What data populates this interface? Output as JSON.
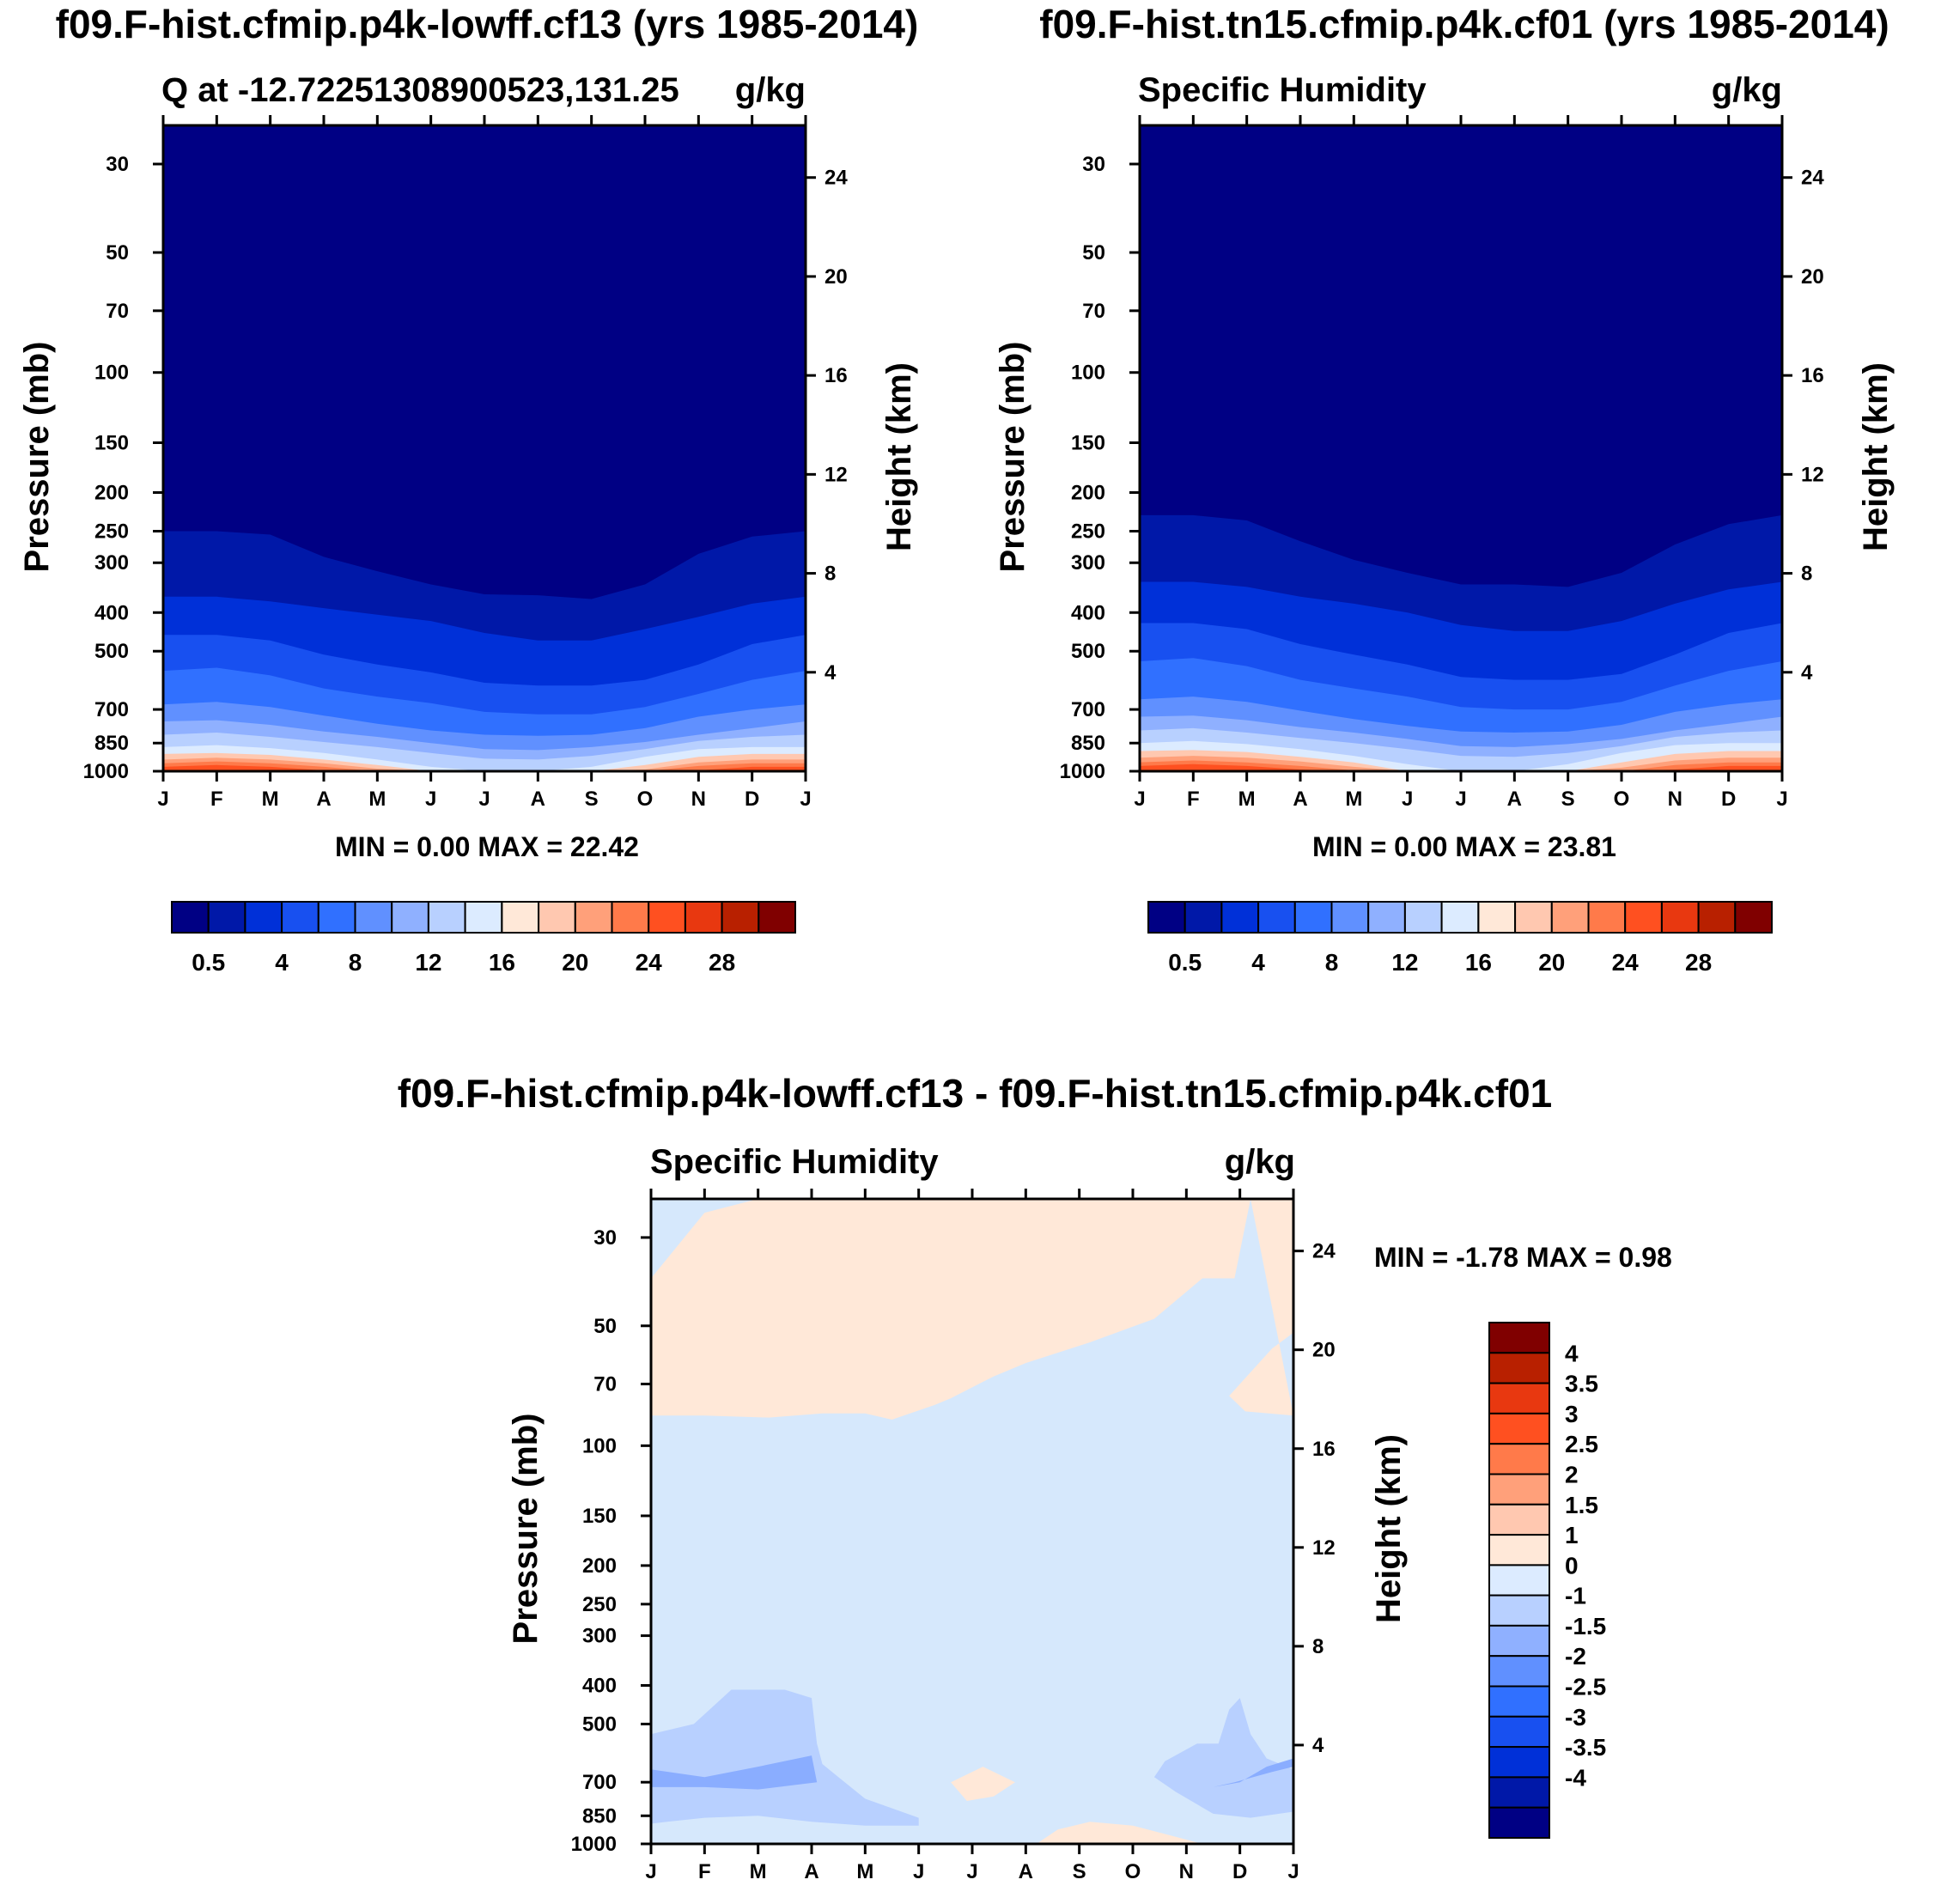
{
  "chart_data": [
    {
      "type": "heatmap",
      "title": "f09.F-hist.cfmip.p4k-lowff.cf13 (yrs 1985-2014)",
      "left_subtitle": "Q at -12.72251308900523,131.25",
      "right_subtitle": "g/kg",
      "ylabel": "Pressure (mb)",
      "y2label": "Height (km)",
      "x_ticks": [
        "J",
        "F",
        "M",
        "A",
        "M",
        "J",
        "J",
        "A",
        "S",
        "O",
        "N",
        "D",
        "J"
      ],
      "pressure_ticks": [
        "30",
        "50",
        "70",
        "100",
        "150",
        "200",
        "250",
        "300",
        "400",
        "500",
        "700",
        "850",
        "1000"
      ],
      "height_ticks": [
        "24",
        "20",
        "16",
        "12",
        "8",
        "4"
      ],
      "ylim_mb": [
        1000,
        24
      ],
      "stats_text": "MIN =   0.00 MAX =  22.42",
      "min": 0.0,
      "max": 22.42,
      "contour_levels": [
        0.5,
        2,
        4,
        6,
        8,
        10,
        12,
        14,
        16,
        18,
        20,
        22,
        24,
        26,
        28
      ],
      "colorbar_labels": [
        "0.5",
        "4",
        "8",
        "12",
        "16",
        "20",
        "24",
        "28"
      ],
      "boundaries_mb": [
        [
          250,
          250,
          255,
          290,
          315,
          340,
          360,
          362,
          370,
          340,
          285,
          258,
          250
        ],
        [
          365,
          365,
          375,
          390,
          405,
          420,
          450,
          470,
          470,
          440,
          410,
          380,
          365
        ],
        [
          455,
          455,
          470,
          510,
          540,
          565,
          600,
          610,
          610,
          590,
          540,
          480,
          455
        ],
        [
          560,
          550,
          575,
          620,
          650,
          675,
          710,
          720,
          720,
          690,
          640,
          590,
          560
        ],
        [
          680,
          670,
          690,
          725,
          760,
          790,
          810,
          815,
          810,
          780,
          730,
          700,
          680
        ],
        [
          750,
          745,
          765,
          795,
          820,
          850,
          880,
          885,
          870,
          845,
          810,
          780,
          750
        ],
        [
          810,
          800,
          820,
          845,
          870,
          900,
          930,
          935,
          915,
          880,
          840,
          820,
          810
        ],
        [
          870,
          860,
          875,
          900,
          935,
          975,
          1000,
          1000,
          975,
          920,
          880,
          870,
          870
        ],
        [
          905,
          900,
          910,
          935,
          965,
          1000,
          1000,
          1000,
          1000,
          965,
          920,
          905,
          905
        ],
        [
          935,
          925,
          935,
          955,
          985,
          1000,
          1000,
          1000,
          1000,
          990,
          950,
          935,
          935
        ],
        [
          955,
          945,
          955,
          975,
          1000,
          1000,
          1000,
          1000,
          1000,
          1000,
          970,
          955,
          955
        ],
        [
          975,
          965,
          975,
          995,
          1000,
          1000,
          1000,
          1000,
          1000,
          1000,
          995,
          975,
          975
        ]
      ],
      "colors": [
        "#000084",
        "#0018a8",
        "#0030d8",
        "#1850f0",
        "#3070ff",
        "#6090ff",
        "#8fb0ff",
        "#b8d0ff",
        "#dcebff",
        "#ffe8d8",
        "#ffc8b0",
        "#ffa07a",
        "#ff7a4a",
        "#ff5020",
        "#e83810",
        "#b82000",
        "#800000"
      ]
    },
    {
      "type": "heatmap",
      "title": "f09.F-hist.tn15.cfmip.p4k.cf01 (yrs 1985-2014)",
      "left_subtitle": "Specific Humidity",
      "right_subtitle": "g/kg",
      "ylabel": "Pressure (mb)",
      "y2label": "Height (km)",
      "x_ticks": [
        "J",
        "F",
        "M",
        "A",
        "M",
        "J",
        "J",
        "A",
        "S",
        "O",
        "N",
        "D",
        "J"
      ],
      "pressure_ticks": [
        "30",
        "50",
        "70",
        "100",
        "150",
        "200",
        "250",
        "300",
        "400",
        "500",
        "700",
        "850",
        "1000"
      ],
      "height_ticks": [
        "24",
        "20",
        "16",
        "12",
        "8",
        "4"
      ],
      "ylim_mb": [
        1000,
        24
      ],
      "stats_text": "MIN =   0.00 MAX =  23.81",
      "min": 0.0,
      "max": 23.81,
      "contour_levels": [
        0.5,
        2,
        4,
        6,
        8,
        10,
        12,
        14,
        16,
        18,
        20,
        22,
        24,
        26,
        28
      ],
      "colorbar_labels": [
        "0.5",
        "4",
        "8",
        "12",
        "16",
        "20",
        "24",
        "28"
      ],
      "boundaries_mb": [
        [
          228,
          228,
          235,
          265,
          295,
          318,
          340,
          340,
          345,
          318,
          270,
          240,
          228
        ],
        [
          335,
          335,
          345,
          365,
          380,
          400,
          430,
          445,
          445,
          420,
          380,
          350,
          335
        ],
        [
          425,
          425,
          440,
          480,
          510,
          540,
          580,
          590,
          590,
          570,
          510,
          450,
          425
        ],
        [
          530,
          520,
          545,
          590,
          620,
          650,
          690,
          700,
          700,
          670,
          610,
          560,
          530
        ],
        [
          660,
          650,
          670,
          705,
          740,
          770,
          795,
          800,
          795,
          765,
          710,
          680,
          660
        ],
        [
          730,
          725,
          745,
          775,
          800,
          830,
          865,
          870,
          855,
          830,
          790,
          760,
          730
        ],
        [
          790,
          780,
          800,
          825,
          850,
          880,
          915,
          920,
          900,
          865,
          820,
          800,
          790
        ],
        [
          850,
          840,
          855,
          880,
          915,
          960,
          1000,
          1000,
          960,
          900,
          860,
          850,
          850
        ],
        [
          890,
          885,
          895,
          920,
          950,
          1000,
          1000,
          1000,
          1000,
          950,
          905,
          890,
          890
        ],
        [
          925,
          915,
          925,
          945,
          975,
          1000,
          1000,
          1000,
          1000,
          980,
          940,
          925,
          925
        ],
        [
          950,
          940,
          950,
          970,
          995,
          1000,
          1000,
          1000,
          1000,
          1000,
          965,
          950,
          950
        ],
        [
          970,
          960,
          970,
          990,
          1000,
          1000,
          1000,
          1000,
          1000,
          1000,
          990,
          970,
          970
        ]
      ],
      "colors": [
        "#000084",
        "#0018a8",
        "#0030d8",
        "#1850f0",
        "#3070ff",
        "#6090ff",
        "#8fb0ff",
        "#b8d0ff",
        "#dcebff",
        "#ffe8d8",
        "#ffc8b0",
        "#ffa07a",
        "#ff7a4a",
        "#ff5020",
        "#e83810",
        "#b82000",
        "#800000"
      ]
    },
    {
      "type": "heatmap",
      "title": "f09.F-hist.cfmip.p4k-lowff.cf13 - f09.F-hist.tn15.cfmip.p4k.cf01",
      "left_subtitle": "Specific Humidity",
      "right_subtitle": "g/kg",
      "ylabel": "Pressure (mb)",
      "y2label": "Height (km)",
      "x_ticks": [
        "J",
        "F",
        "M",
        "A",
        "M",
        "J",
        "J",
        "A",
        "S",
        "O",
        "N",
        "D",
        "J"
      ],
      "pressure_ticks": [
        "30",
        "50",
        "70",
        "100",
        "150",
        "200",
        "250",
        "300",
        "400",
        "500",
        "700",
        "850",
        "1000"
      ],
      "height_ticks": [
        "24",
        "20",
        "16",
        "12",
        "8",
        "4"
      ],
      "ylim_mb": [
        1000,
        24
      ],
      "stats_text": "MIN =  -1.78 MAX =   0.98",
      "min": -1.78,
      "max": 0.98,
      "contour_levels": [
        -4,
        -3.5,
        -3,
        -2.5,
        -2,
        -1.5,
        -1,
        0,
        1,
        1.5,
        2,
        2.5,
        3,
        3.5,
        4
      ],
      "colorbar_labels": [
        "4",
        "3.5",
        "3",
        "2.5",
        "2",
        "1.5",
        "1",
        "0",
        "-1",
        "-1.5",
        "-2",
        "-2.5",
        "-3",
        "-3.5",
        "-4"
      ],
      "background_color": "#d6e8fc",
      "positive_upper": [
        [
          0,
          38
        ],
        [
          1,
          26
        ],
        [
          2,
          24
        ],
        [
          3,
          24
        ],
        [
          4,
          24
        ],
        [
          5,
          24
        ],
        [
          6,
          24
        ],
        [
          7,
          24
        ],
        [
          8,
          24
        ],
        [
          9,
          24
        ],
        [
          10,
          24
        ],
        [
          10.8,
          24
        ],
        [
          11.2,
          24
        ],
        [
          12,
          24
        ],
        [
          12,
          52
        ],
        [
          11.6,
          57
        ],
        [
          11,
          70
        ],
        [
          10.8,
          75
        ],
        [
          11.1,
          82
        ],
        [
          12,
          84
        ],
        [
          12,
          84
        ],
        [
          11.2,
          24
        ],
        [
          10.9,
          38
        ],
        [
          10.3,
          38
        ],
        [
          9.4,
          48
        ],
        [
          8.2,
          55
        ],
        [
          7,
          62
        ],
        [
          6.4,
          67
        ],
        [
          5.6,
          76
        ],
        [
          5.3,
          79
        ],
        [
          4.5,
          86
        ],
        [
          4,
          83
        ],
        [
          3.2,
          83
        ],
        [
          2.2,
          85
        ],
        [
          1,
          84
        ],
        [
          0,
          84
        ]
      ],
      "negative_blobs": [
        {
          "color": "#b8d0ff",
          "points": [
            [
              0,
              530
            ],
            [
              0.8,
              500
            ],
            [
              1.5,
              410
            ],
            [
              2.5,
              410
            ],
            [
              3,
              430
            ],
            [
              3.1,
              560
            ],
            [
              3.2,
              630
            ],
            [
              3.5,
              680
            ],
            [
              4,
              770
            ],
            [
              5,
              860
            ],
            [
              5,
              900
            ],
            [
              4,
              900
            ],
            [
              3,
              880
            ],
            [
              2,
              850
            ],
            [
              1,
              860
            ],
            [
              0.3,
              880
            ],
            [
              0,
              890
            ]
          ]
        },
        {
          "color": "#8aadff",
          "points": [
            [
              0,
              650
            ],
            [
              1,
              680
            ],
            [
              2,
              640
            ],
            [
              3,
              600
            ],
            [
              3.1,
              700
            ],
            [
              2,
              730
            ],
            [
              1,
              720
            ],
            [
              0,
              720
            ]
          ]
        },
        {
          "color": "#b8d0ff",
          "points": [
            [
              12,
              650
            ],
            [
              11.5,
              610
            ],
            [
              11.2,
              530
            ],
            [
              11.0,
              430
            ],
            [
              10.8,
              460
            ],
            [
              10.6,
              560
            ],
            [
              10.2,
              560
            ],
            [
              9.6,
              620
            ],
            [
              9.4,
              680
            ],
            [
              9.8,
              740
            ],
            [
              10.5,
              840
            ],
            [
              11.2,
              860
            ],
            [
              12,
              830
            ]
          ]
        },
        {
          "color": "#8aadff",
          "points": [
            [
              12,
              610
            ],
            [
              11.5,
              640
            ],
            [
              11,
              700
            ],
            [
              10.5,
              720
            ],
            [
              10.9,
              700
            ],
            [
              11.6,
              660
            ],
            [
              12,
              640
            ]
          ]
        }
      ],
      "positive_blobs": [
        {
          "color": "#ffe8d8",
          "points": [
            [
              5.6,
              700
            ],
            [
              6.2,
              640
            ],
            [
              6.8,
              700
            ],
            [
              6.4,
              760
            ],
            [
              5.9,
              780
            ]
          ]
        },
        {
          "color": "#ffe8d8",
          "points": [
            [
              7.2,
              1000
            ],
            [
              7.6,
              920
            ],
            [
              8.2,
              880
            ],
            [
              9,
              900
            ],
            [
              9.8,
              960
            ],
            [
              10.3,
              1000
            ]
          ]
        }
      ],
      "colors": [
        "#000084",
        "#0018a8",
        "#0030d8",
        "#1850f0",
        "#3070ff",
        "#6090ff",
        "#8fb0ff",
        "#b8d0ff",
        "#dcebff",
        "#ffe8d8",
        "#ffc8b0",
        "#ffa07a",
        "#ff7a4a",
        "#ff5020",
        "#e83810",
        "#b82000",
        "#800000"
      ]
    }
  ]
}
